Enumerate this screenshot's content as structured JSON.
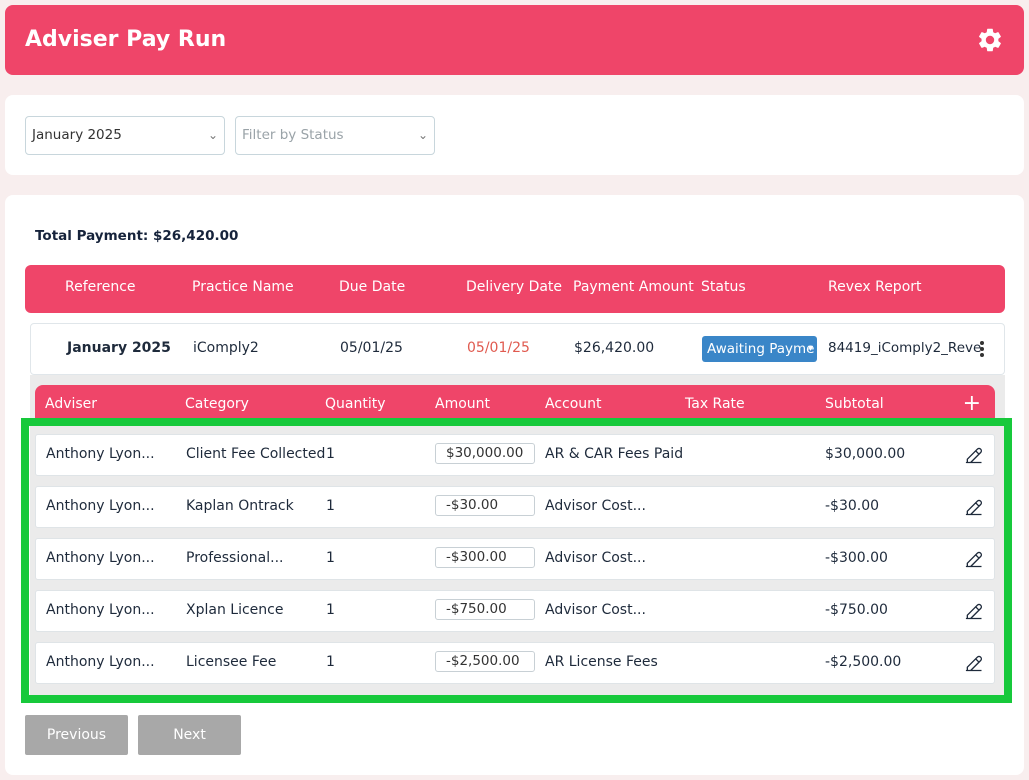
{
  "header": {
    "title": "Adviser Pay Run",
    "settings_icon": "gear-icon"
  },
  "filters": {
    "month_value": "January 2025",
    "status_placeholder": "Filter by Status"
  },
  "summary": {
    "total_payment": "Total Payment: $26,420.00"
  },
  "main_table": {
    "columns": [
      "Reference",
      "Practice Name",
      "Due Date",
      "Delivery Date",
      "Payment Amount",
      "Status",
      "Revex Report"
    ],
    "row": {
      "reference": "January 2025",
      "practice_name": "iComply2",
      "due_date": "05/01/25",
      "delivery_date": "05/01/25",
      "payment_amount": "$26,420.00",
      "status": "Awaiting Payme",
      "revex_report": "84419_iComply2_Reve"
    }
  },
  "line_items": {
    "columns": [
      "Adviser",
      "Category",
      "Quantity",
      "Amount",
      "Account",
      "Tax Rate",
      "Subtotal"
    ],
    "add_label": "+",
    "rows": [
      {
        "adviser": "Anthony Lyon...",
        "category": "Client Fee Collected",
        "quantity": "1",
        "amount": "$30,000.00",
        "account": "AR & CAR Fees Paid",
        "tax_rate": "",
        "subtotal": "$30,000.00"
      },
      {
        "adviser": "Anthony Lyon...",
        "category": "Kaplan Ontrack",
        "quantity": "1",
        "amount": "-$30.00",
        "account": "Advisor Cost...",
        "tax_rate": "",
        "subtotal": "-$30.00"
      },
      {
        "adviser": "Anthony Lyon...",
        "category": "Professional...",
        "quantity": "1",
        "amount": "-$300.00",
        "account": "Advisor Cost...",
        "tax_rate": "",
        "subtotal": "-$300.00"
      },
      {
        "adviser": "Anthony Lyon...",
        "category": "Xplan Licence",
        "quantity": "1",
        "amount": "-$750.00",
        "account": "Advisor Cost...",
        "tax_rate": "",
        "subtotal": "-$750.00"
      },
      {
        "adviser": "Anthony Lyon...",
        "category": "Licensee Fee",
        "quantity": "1",
        "amount": "-$2,500.00",
        "account": "AR License Fees",
        "tax_rate": "",
        "subtotal": "-$2,500.00"
      }
    ]
  },
  "pagination": {
    "previous": "Previous",
    "next": "Next"
  },
  "colors": {
    "accent": "#ef4569",
    "status_pill": "#3a86c8",
    "late_date": "#e05a4f",
    "highlight": "#17c93b"
  }
}
